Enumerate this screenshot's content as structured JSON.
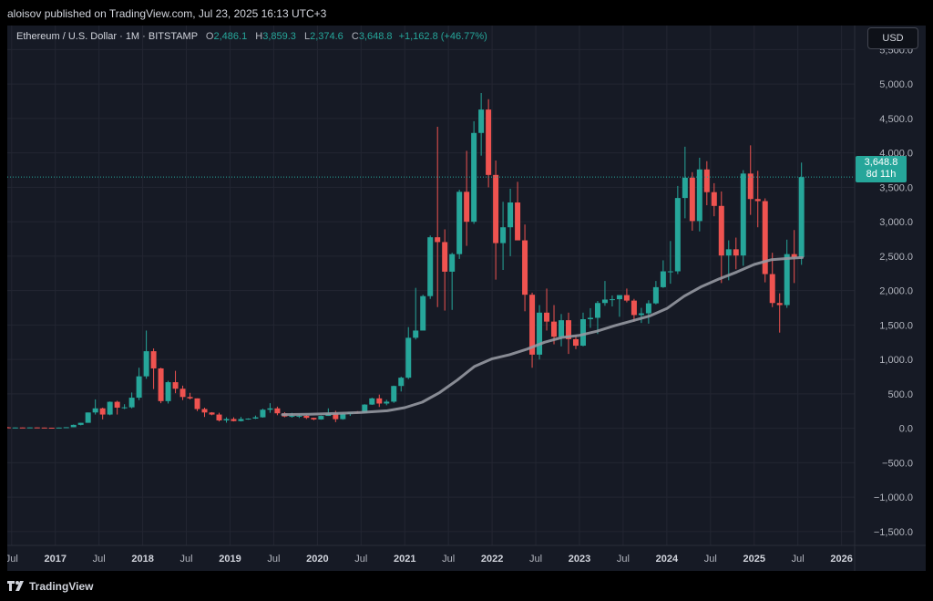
{
  "header": {
    "published": "aloisov published on TradingView.com, Jul 23, 2025 16:13 UTC+3"
  },
  "legend": {
    "symbol": "Ethereum / U.S. Dollar · 1M · BITSTAMP",
    "o_label": "O",
    "o": "2,486.1",
    "h_label": "H",
    "h": "3,859.3",
    "l_label": "L",
    "l": "2,374.6",
    "c_label": "C",
    "c": "3,648.8",
    "change": "+1,162.8 (+46.77%)"
  },
  "currency": "USD",
  "price_label": {
    "price": "3,648.8",
    "countdown": "8d 11h"
  },
  "footer": {
    "brand": "TradingView"
  },
  "colors": {
    "up": "#26a69a",
    "down": "#ef5350",
    "ma": "#9598a1",
    "background": "#161a25"
  },
  "chart_data": {
    "type": "candlestick",
    "yticks": [
      "5,500.0",
      "5,000.0",
      "4,500.0",
      "4,000.0",
      "3,500.0",
      "3,000.0",
      "2,500.0",
      "2,000.0",
      "1,500.0",
      "1,000.0",
      "500.0",
      "0.0",
      "−500.0",
      "−1,000.0",
      "−1,500.0"
    ],
    "ytick_values": [
      5500,
      5000,
      4500,
      4000,
      3500,
      3000,
      2500,
      2000,
      1500,
      1000,
      500,
      0,
      -500,
      -1000,
      -1500
    ],
    "ylim": [
      -1700,
      5850
    ],
    "xticks": [
      {
        "label": "Jul",
        "x": 2016.5,
        "bold": false
      },
      {
        "label": "2017",
        "x": 2017,
        "bold": true
      },
      {
        "label": "Jul",
        "x": 2017.5,
        "bold": false
      },
      {
        "label": "2018",
        "x": 2018,
        "bold": true
      },
      {
        "label": "Jul",
        "x": 2018.5,
        "bold": false
      },
      {
        "label": "2019",
        "x": 2019,
        "bold": true
      },
      {
        "label": "Jul",
        "x": 2019.5,
        "bold": false
      },
      {
        "label": "2020",
        "x": 2020,
        "bold": true
      },
      {
        "label": "Jul",
        "x": 2020.5,
        "bold": false
      },
      {
        "label": "2021",
        "x": 2021,
        "bold": true
      },
      {
        "label": "Jul",
        "x": 2021.5,
        "bold": false
      },
      {
        "label": "2022",
        "x": 2022,
        "bold": true
      },
      {
        "label": "Jul",
        "x": 2022.5,
        "bold": false
      },
      {
        "label": "2023",
        "x": 2023,
        "bold": true
      },
      {
        "label": "Jul",
        "x": 2023.5,
        "bold": false
      },
      {
        "label": "2024",
        "x": 2024,
        "bold": true
      },
      {
        "label": "Jul",
        "x": 2024.5,
        "bold": false
      },
      {
        "label": "2025",
        "x": 2025,
        "bold": true
      },
      {
        "label": "Jul",
        "x": 2025.5,
        "bold": false
      },
      {
        "label": "2026",
        "x": 2026,
        "bold": true
      }
    ],
    "xlim": [
      2016.45,
      2026.15
    ],
    "current_price": 3648.8,
    "candles": [
      {
        "t": "2016-06",
        "o": 14,
        "h": 21,
        "l": 11,
        "c": 12
      },
      {
        "t": "2016-07",
        "o": 12,
        "h": 14,
        "l": 10,
        "c": 12
      },
      {
        "t": "2016-08",
        "o": 12,
        "h": 13,
        "l": 10,
        "c": 11
      },
      {
        "t": "2016-09",
        "o": 11,
        "h": 14,
        "l": 11,
        "c": 13
      },
      {
        "t": "2016-10",
        "o": 13,
        "h": 14,
        "l": 10,
        "c": 11
      },
      {
        "t": "2016-11",
        "o": 11,
        "h": 11,
        "l": 9,
        "c": 9
      },
      {
        "t": "2016-12",
        "o": 9,
        "h": 9,
        "l": 6,
        "c": 8
      },
      {
        "t": "2017-01",
        "o": 8,
        "h": 11,
        "l": 8,
        "c": 11
      },
      {
        "t": "2017-02",
        "o": 11,
        "h": 16,
        "l": 10,
        "c": 16
      },
      {
        "t": "2017-03",
        "o": 16,
        "h": 55,
        "l": 16,
        "c": 50
      },
      {
        "t": "2017-04",
        "o": 50,
        "h": 80,
        "l": 43,
        "c": 80
      },
      {
        "t": "2017-05",
        "o": 80,
        "h": 230,
        "l": 80,
        "c": 230
      },
      {
        "t": "2017-06",
        "o": 230,
        "h": 420,
        "l": 200,
        "c": 290
      },
      {
        "t": "2017-07",
        "o": 290,
        "h": 300,
        "l": 130,
        "c": 200
      },
      {
        "t": "2017-08",
        "o": 200,
        "h": 390,
        "l": 190,
        "c": 385
      },
      {
        "t": "2017-09",
        "o": 385,
        "h": 400,
        "l": 200,
        "c": 300
      },
      {
        "t": "2017-10",
        "o": 300,
        "h": 350,
        "l": 280,
        "c": 305
      },
      {
        "t": "2017-11",
        "o": 305,
        "h": 520,
        "l": 290,
        "c": 445
      },
      {
        "t": "2017-12",
        "o": 445,
        "h": 880,
        "l": 410,
        "c": 755
      },
      {
        "t": "2018-01",
        "o": 755,
        "h": 1420,
        "l": 720,
        "c": 1120
      },
      {
        "t": "2018-02",
        "o": 1120,
        "h": 1160,
        "l": 570,
        "c": 870
      },
      {
        "t": "2018-03",
        "o": 870,
        "h": 880,
        "l": 365,
        "c": 395
      },
      {
        "t": "2018-04",
        "o": 395,
        "h": 690,
        "l": 360,
        "c": 670
      },
      {
        "t": "2018-05",
        "o": 670,
        "h": 835,
        "l": 510,
        "c": 575
      },
      {
        "t": "2018-06",
        "o": 575,
        "h": 620,
        "l": 410,
        "c": 455
      },
      {
        "t": "2018-07",
        "o": 455,
        "h": 515,
        "l": 420,
        "c": 435
      },
      {
        "t": "2018-08",
        "o": 435,
        "h": 435,
        "l": 250,
        "c": 280
      },
      {
        "t": "2018-09",
        "o": 280,
        "h": 300,
        "l": 165,
        "c": 230
      },
      {
        "t": "2018-10",
        "o": 230,
        "h": 235,
        "l": 190,
        "c": 200
      },
      {
        "t": "2018-11",
        "o": 200,
        "h": 225,
        "l": 100,
        "c": 115
      },
      {
        "t": "2018-12",
        "o": 115,
        "h": 160,
        "l": 82,
        "c": 135
      },
      {
        "t": "2019-01",
        "o": 135,
        "h": 160,
        "l": 100,
        "c": 105
      },
      {
        "t": "2019-02",
        "o": 105,
        "h": 165,
        "l": 100,
        "c": 135
      },
      {
        "t": "2019-03",
        "o": 135,
        "h": 145,
        "l": 125,
        "c": 141
      },
      {
        "t": "2019-04",
        "o": 141,
        "h": 185,
        "l": 135,
        "c": 160
      },
      {
        "t": "2019-05",
        "o": 160,
        "h": 285,
        "l": 155,
        "c": 270
      },
      {
        "t": "2019-06",
        "o": 270,
        "h": 365,
        "l": 225,
        "c": 290
      },
      {
        "t": "2019-07",
        "o": 290,
        "h": 315,
        "l": 190,
        "c": 218
      },
      {
        "t": "2019-08",
        "o": 218,
        "h": 235,
        "l": 160,
        "c": 172
      },
      {
        "t": "2019-09",
        "o": 172,
        "h": 225,
        "l": 155,
        "c": 180
      },
      {
        "t": "2019-10",
        "o": 180,
        "h": 200,
        "l": 150,
        "c": 182
      },
      {
        "t": "2019-11",
        "o": 182,
        "h": 195,
        "l": 135,
        "c": 152
      },
      {
        "t": "2019-12",
        "o": 152,
        "h": 155,
        "l": 118,
        "c": 129
      },
      {
        "t": "2020-01",
        "o": 129,
        "h": 185,
        "l": 125,
        "c": 180
      },
      {
        "t": "2020-02",
        "o": 180,
        "h": 290,
        "l": 180,
        "c": 218
      },
      {
        "t": "2020-03",
        "o": 218,
        "h": 255,
        "l": 90,
        "c": 133
      },
      {
        "t": "2020-04",
        "o": 133,
        "h": 225,
        "l": 125,
        "c": 207
      },
      {
        "t": "2020-05",
        "o": 207,
        "h": 225,
        "l": 180,
        "c": 230
      },
      {
        "t": "2020-06",
        "o": 230,
        "h": 250,
        "l": 215,
        "c": 226
      },
      {
        "t": "2020-07",
        "o": 226,
        "h": 350,
        "l": 225,
        "c": 345
      },
      {
        "t": "2020-08",
        "o": 345,
        "h": 445,
        "l": 340,
        "c": 435
      },
      {
        "t": "2020-09",
        "o": 435,
        "h": 490,
        "l": 310,
        "c": 360
      },
      {
        "t": "2020-10",
        "o": 360,
        "h": 415,
        "l": 335,
        "c": 387
      },
      {
        "t": "2020-11",
        "o": 387,
        "h": 620,
        "l": 370,
        "c": 615
      },
      {
        "t": "2020-12",
        "o": 615,
        "h": 750,
        "l": 535,
        "c": 735
      },
      {
        "t": "2021-01",
        "o": 735,
        "h": 1470,
        "l": 715,
        "c": 1315
      },
      {
        "t": "2021-02",
        "o": 1315,
        "h": 2040,
        "l": 1290,
        "c": 1420
      },
      {
        "t": "2021-03",
        "o": 1420,
        "h": 1940,
        "l": 1425,
        "c": 1920
      },
      {
        "t": "2021-04",
        "o": 1920,
        "h": 2800,
        "l": 1880,
        "c": 2775
      },
      {
        "t": "2021-05",
        "o": 2775,
        "h": 4380,
        "l": 1760,
        "c": 2705
      },
      {
        "t": "2021-06",
        "o": 2705,
        "h": 2890,
        "l": 1710,
        "c": 2275
      },
      {
        "t": "2021-07",
        "o": 2275,
        "h": 2550,
        "l": 1720,
        "c": 2530
      },
      {
        "t": "2021-08",
        "o": 2530,
        "h": 3465,
        "l": 2460,
        "c": 3435
      },
      {
        "t": "2021-09",
        "o": 3435,
        "h": 4030,
        "l": 2650,
        "c": 3000
      },
      {
        "t": "2021-10",
        "o": 3000,
        "h": 4460,
        "l": 2970,
        "c": 4290
      },
      {
        "t": "2021-11",
        "o": 4290,
        "h": 4870,
        "l": 3960,
        "c": 4630
      },
      {
        "t": "2021-12",
        "o": 4630,
        "h": 4780,
        "l": 3500,
        "c": 3680
      },
      {
        "t": "2022-01",
        "o": 3680,
        "h": 3890,
        "l": 2160,
        "c": 2690
      },
      {
        "t": "2022-02",
        "o": 2690,
        "h": 3290,
        "l": 2300,
        "c": 2920
      },
      {
        "t": "2022-03",
        "o": 2920,
        "h": 3480,
        "l": 2500,
        "c": 3280
      },
      {
        "t": "2022-04",
        "o": 3280,
        "h": 3580,
        "l": 2780,
        "c": 2730
      },
      {
        "t": "2022-05",
        "o": 2730,
        "h": 2960,
        "l": 1700,
        "c": 1940
      },
      {
        "t": "2022-06",
        "o": 1940,
        "h": 1970,
        "l": 880,
        "c": 1070
      },
      {
        "t": "2022-07",
        "o": 1070,
        "h": 1790,
        "l": 1000,
        "c": 1680
      },
      {
        "t": "2022-08",
        "o": 1680,
        "h": 2030,
        "l": 1420,
        "c": 1550
      },
      {
        "t": "2022-09",
        "o": 1550,
        "h": 1790,
        "l": 1220,
        "c": 1330
      },
      {
        "t": "2022-10",
        "o": 1330,
        "h": 1660,
        "l": 1190,
        "c": 1570
      },
      {
        "t": "2022-11",
        "o": 1570,
        "h": 1680,
        "l": 1080,
        "c": 1295
      },
      {
        "t": "2022-12",
        "o": 1295,
        "h": 1350,
        "l": 1150,
        "c": 1200
      },
      {
        "t": "2023-01",
        "o": 1200,
        "h": 1680,
        "l": 1190,
        "c": 1585
      },
      {
        "t": "2023-02",
        "o": 1585,
        "h": 1745,
        "l": 1460,
        "c": 1605
      },
      {
        "t": "2023-03",
        "o": 1605,
        "h": 1850,
        "l": 1370,
        "c": 1820
      },
      {
        "t": "2023-04",
        "o": 1820,
        "h": 2140,
        "l": 1780,
        "c": 1870
      },
      {
        "t": "2023-05",
        "o": 1870,
        "h": 1930,
        "l": 1770,
        "c": 1875
      },
      {
        "t": "2023-06",
        "o": 1875,
        "h": 1930,
        "l": 1620,
        "c": 1935
      },
      {
        "t": "2023-07",
        "o": 1935,
        "h": 2030,
        "l": 1830,
        "c": 1855
      },
      {
        "t": "2023-08",
        "o": 1855,
        "h": 1880,
        "l": 1550,
        "c": 1645
      },
      {
        "t": "2023-09",
        "o": 1645,
        "h": 1750,
        "l": 1530,
        "c": 1670
      },
      {
        "t": "2023-10",
        "o": 1670,
        "h": 1860,
        "l": 1520,
        "c": 1815
      },
      {
        "t": "2023-11",
        "o": 1815,
        "h": 2140,
        "l": 1800,
        "c": 2050
      },
      {
        "t": "2023-12",
        "o": 2050,
        "h": 2440,
        "l": 2040,
        "c": 2280
      },
      {
        "t": "2024-01",
        "o": 2280,
        "h": 2720,
        "l": 2100,
        "c": 2280
      },
      {
        "t": "2024-02",
        "o": 2280,
        "h": 3520,
        "l": 2240,
        "c": 3345
      },
      {
        "t": "2024-03",
        "o": 3345,
        "h": 4090,
        "l": 3050,
        "c": 3640
      },
      {
        "t": "2024-04",
        "o": 3640,
        "h": 3720,
        "l": 2870,
        "c": 3010
      },
      {
        "t": "2024-05",
        "o": 3010,
        "h": 3930,
        "l": 2860,
        "c": 3760
      },
      {
        "t": "2024-06",
        "o": 3760,
        "h": 3880,
        "l": 3240,
        "c": 3430
      },
      {
        "t": "2024-07",
        "o": 3430,
        "h": 3560,
        "l": 3080,
        "c": 3230
      },
      {
        "t": "2024-08",
        "o": 3230,
        "h": 3440,
        "l": 2110,
        "c": 2510
      },
      {
        "t": "2024-09",
        "o": 2510,
        "h": 2730,
        "l": 2150,
        "c": 2600
      },
      {
        "t": "2024-10",
        "o": 2600,
        "h": 2770,
        "l": 2310,
        "c": 2510
      },
      {
        "t": "2024-11",
        "o": 2510,
        "h": 3750,
        "l": 2360,
        "c": 3700
      },
      {
        "t": "2024-12",
        "o": 3700,
        "h": 4110,
        "l": 3100,
        "c": 3330
      },
      {
        "t": "2025-01",
        "o": 3330,
        "h": 3740,
        "l": 2920,
        "c": 3300
      },
      {
        "t": "2025-02",
        "o": 3300,
        "h": 3340,
        "l": 2120,
        "c": 2240
      },
      {
        "t": "2025-03",
        "o": 2240,
        "h": 2550,
        "l": 1760,
        "c": 1820
      },
      {
        "t": "2025-04",
        "o": 1820,
        "h": 1960,
        "l": 1390,
        "c": 1790
      },
      {
        "t": "2025-05",
        "o": 1790,
        "h": 2740,
        "l": 1750,
        "c": 2530
      },
      {
        "t": "2025-06",
        "o": 2530,
        "h": 2880,
        "l": 2110,
        "c": 2486.1
      },
      {
        "t": "2025-07",
        "o": 2486.1,
        "h": 3859.3,
        "l": 2374.6,
        "c": 3648.8
      }
    ],
    "ma": [
      [
        2019.6,
        200
      ],
      [
        2019.9,
        205
      ],
      [
        2020.2,
        215
      ],
      [
        2020.5,
        230
      ],
      [
        2020.8,
        255
      ],
      [
        2021.0,
        300
      ],
      [
        2021.2,
        380
      ],
      [
        2021.4,
        520
      ],
      [
        2021.6,
        700
      ],
      [
        2021.8,
        900
      ],
      [
        2022.0,
        1010
      ],
      [
        2022.2,
        1070
      ],
      [
        2022.4,
        1150
      ],
      [
        2022.6,
        1250
      ],
      [
        2022.8,
        1320
      ],
      [
        2023.0,
        1350
      ],
      [
        2023.2,
        1410
      ],
      [
        2023.4,
        1490
      ],
      [
        2023.6,
        1560
      ],
      [
        2023.8,
        1630
      ],
      [
        2024.0,
        1740
      ],
      [
        2024.2,
        1920
      ],
      [
        2024.4,
        2060
      ],
      [
        2024.6,
        2170
      ],
      [
        2024.8,
        2270
      ],
      [
        2025.0,
        2380
      ],
      [
        2025.2,
        2450
      ],
      [
        2025.4,
        2470
      ],
      [
        2025.55,
        2480
      ]
    ]
  }
}
